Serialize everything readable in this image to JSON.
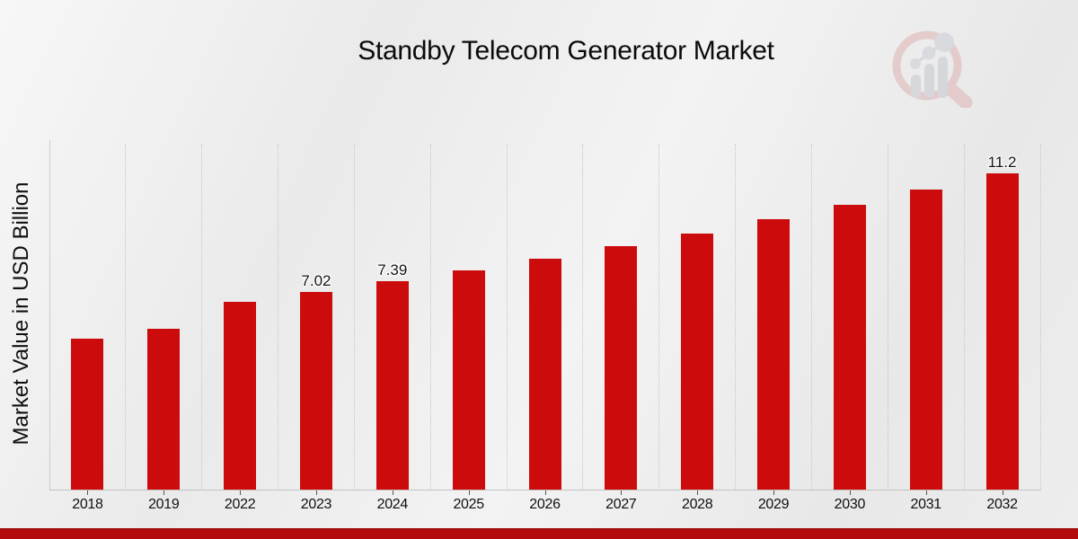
{
  "page": {
    "title": "Standby Telecom Generator Market"
  },
  "branding": {
    "watermark": "market-research-future-logo",
    "accent_bar_color": "#b30b0b",
    "bar_color": "#cc0c0c"
  },
  "chart_data": {
    "type": "bar",
    "title": "Standby Telecom Generator Market",
    "ylabel": "Market Value in USD Billion",
    "xlabel": "",
    "categories": [
      "2018",
      "2019",
      "2022",
      "2023",
      "2024",
      "2025",
      "2026",
      "2027",
      "2028",
      "2029",
      "2030",
      "2031",
      "2032"
    ],
    "values": [
      5.37,
      5.72,
      6.66,
      7.02,
      7.39,
      7.78,
      8.2,
      8.64,
      9.09,
      9.57,
      10.08,
      10.62,
      11.2
    ],
    "data_labels": {
      "2023": "7.02",
      "2024": "7.39",
      "2032": "11.2"
    },
    "ylim": [
      0,
      12.25
    ],
    "grid": "vertical dotted lines between categories",
    "legend": "none",
    "background": "light gray diagonal gradient"
  }
}
